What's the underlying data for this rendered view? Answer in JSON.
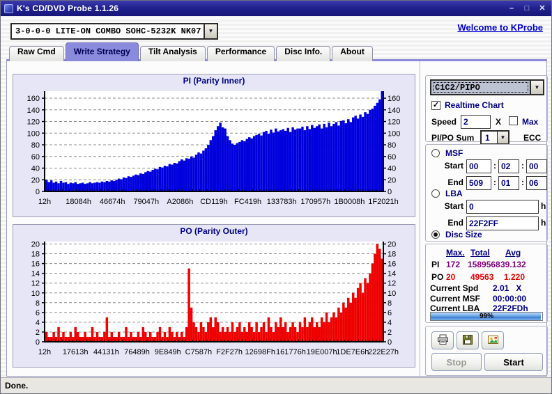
{
  "icons": {
    "minimize": "–",
    "maximize": "□",
    "close": "✕",
    "dropdown": "▼",
    "check": "✓"
  },
  "colors": {
    "accent": "#8b8bdd",
    "pi_bar": "#0000dd",
    "po_bar": "#ee0000",
    "pi_text": "#800080",
    "po_text": "#e00000",
    "link": "#0000cc"
  },
  "window": {
    "title": "K's CD/DVD Probe 1.1.26",
    "status": "Done."
  },
  "header": {
    "drive": "3-0-0-0 LITE-ON COMBO SOHC-5232K NK07",
    "welcome_link": "Welcome to KProbe"
  },
  "tabs": {
    "items": [
      {
        "label": "Raw Cmd",
        "active": false
      },
      {
        "label": "Write Strategy",
        "active": true
      },
      {
        "label": "Tilt Analysis",
        "active": false
      },
      {
        "label": "Performance",
        "active": false
      },
      {
        "label": "Disc Info.",
        "active": false
      },
      {
        "label": "About",
        "active": false
      }
    ]
  },
  "panel": {
    "mode": {
      "value": "C1C2/PIPO"
    },
    "realtime": {
      "label": "Realtime Chart",
      "checked": true
    },
    "speed": {
      "label": "Speed",
      "value": "2",
      "unit": "X"
    },
    "max": {
      "label": "Max",
      "checked": false
    },
    "sum": {
      "label": "PI/PO Sum",
      "value": "1",
      "unit": "ECC"
    },
    "msf": {
      "label": "MSF",
      "selected": false,
      "start_label": "Start",
      "end_label": "End",
      "sep": ":",
      "start": [
        "00",
        "02",
        "00"
      ],
      "end": [
        "509",
        "01",
        "06"
      ]
    },
    "lba": {
      "label": "LBA",
      "selected": false,
      "start_label": "Start",
      "end_label": "End",
      "unit": "h",
      "start": "0",
      "end": "22F2FF"
    },
    "disc_size": {
      "label": "Disc Size",
      "selected": true
    },
    "stats": {
      "col_max": "Max.",
      "col_total": "Total",
      "col_avg": "Avg",
      "pi": {
        "label": "PI",
        "max": "172",
        "total": "1589568",
        "avg": "39.132"
      },
      "po": {
        "label": "PO",
        "max": "20",
        "total": "49563",
        "avg": "1.220"
      }
    },
    "current_spd": {
      "label": "Current Spd",
      "value": "2.01   X"
    },
    "current_msf": {
      "label": "Current MSF",
      "value": "00:00:00"
    },
    "current_lba": {
      "label": "Current LBA",
      "value": "22F2FDh"
    },
    "progress": {
      "percent": 99,
      "label": "99%"
    },
    "actions": {
      "stop": "Stop",
      "start": "Start"
    }
  },
  "chart_data": [
    {
      "type": "bar",
      "title": "PI (Parity Inner)",
      "color": "#0000dd",
      "ylim": [
        0,
        172
      ],
      "yticks": [
        0,
        20,
        40,
        60,
        80,
        100,
        120,
        140,
        160
      ],
      "grid": true,
      "x_labels": [
        "12h",
        "18084h",
        "46674h",
        "79047h",
        "A2086h",
        "CD119h",
        "FC419h",
        "133783h",
        "170957h",
        "1B0008h",
        "1F2021h"
      ],
      "values": [
        20,
        16,
        19,
        15,
        17,
        14,
        18,
        15,
        16,
        13,
        15,
        14,
        16,
        13,
        14,
        15,
        13,
        14,
        16,
        14,
        15,
        16,
        15,
        17,
        16,
        18,
        17,
        19,
        18,
        20,
        22,
        21,
        24,
        23,
        26,
        25,
        27,
        29,
        28,
        31,
        30,
        33,
        35,
        34,
        37,
        39,
        38,
        42,
        41,
        44,
        43,
        47,
        46,
        49,
        48,
        52,
        55,
        53,
        57,
        56,
        60,
        58,
        63,
        67,
        65,
        70,
        74,
        80,
        88,
        95,
        105,
        112,
        118,
        110,
        108,
        95,
        88,
        82,
        80,
        83,
        85,
        88,
        86,
        90,
        93,
        91,
        95,
        97,
        99,
        96,
        102,
        104,
        99,
        106,
        101,
        108,
        103,
        105,
        107,
        104,
        109,
        102,
        110,
        106,
        108,
        108,
        111,
        105,
        112,
        107,
        114,
        109,
        112,
        115,
        108,
        116,
        110,
        118,
        112,
        116,
        119,
        113,
        121,
        122,
        117,
        124,
        119,
        127,
        130,
        125,
        132,
        128,
        136,
        133,
        140,
        142,
        147,
        152,
        158,
        172
      ]
    },
    {
      "type": "bar",
      "title": "PO (Parity Outer)",
      "color": "#ee0000",
      "ylim": [
        0,
        20.5
      ],
      "yticks": [
        0,
        2,
        4,
        6,
        8,
        10,
        12,
        14,
        16,
        18,
        20
      ],
      "grid": true,
      "x_labels": [
        "12h",
        "17613h",
        "44131h",
        "76489h",
        "9E849h",
        "C7587h",
        "F2F27h",
        "12698Fh",
        "161776h",
        "19E007h",
        "1DE7E6h",
        "222E27h"
      ],
      "values": [
        2,
        1,
        1,
        2,
        1,
        3,
        1,
        2,
        1,
        1,
        2,
        1,
        3,
        2,
        1,
        1,
        2,
        1,
        1,
        3,
        1,
        2,
        1,
        1,
        2,
        5,
        1,
        2,
        1,
        1,
        2,
        1,
        1,
        3,
        1,
        2,
        1,
        1,
        2,
        1,
        3,
        2,
        1,
        2,
        1,
        1,
        2,
        3,
        1,
        2,
        1,
        3,
        2,
        1,
        2,
        1,
        2,
        1,
        3,
        15,
        7,
        4,
        3,
        2,
        4,
        3,
        2,
        4,
        5,
        3,
        5,
        4,
        2,
        3,
        2,
        3,
        2,
        4,
        2,
        3,
        4,
        2,
        3,
        2,
        4,
        3,
        2,
        4,
        2,
        3,
        4,
        2,
        5,
        3,
        2,
        4,
        3,
        5,
        3,
        4,
        2,
        3,
        4,
        3,
        2,
        4,
        3,
        5,
        3,
        4,
        5,
        3,
        4,
        3,
        5,
        4,
        6,
        4,
        5,
        6,
        5,
        7,
        6,
        8,
        7,
        9,
        8,
        10,
        9,
        11,
        12,
        10,
        13,
        12,
        14,
        16,
        18,
        20,
        19,
        17
      ]
    }
  ]
}
